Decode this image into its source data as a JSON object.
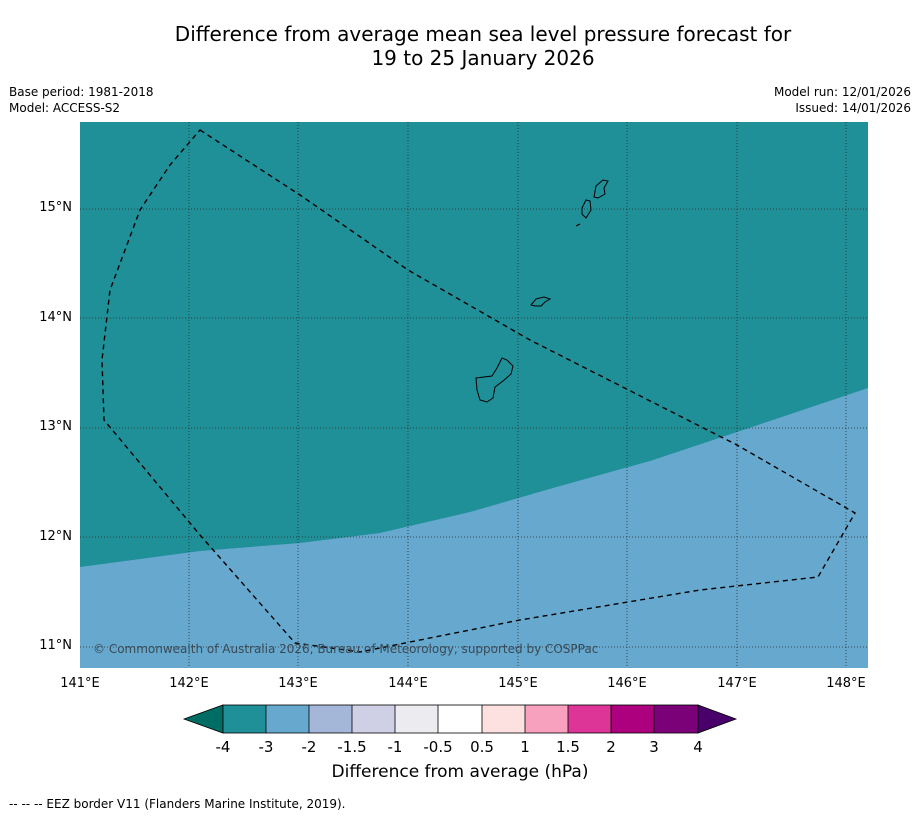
{
  "title": {
    "line1": "Difference from average mean sea level pressure forecast for",
    "line2": "19 to 25 January 2026"
  },
  "meta": {
    "base_period": "Base period: 1981-2018",
    "model": "Model: ACCESS-S2",
    "model_run": "Model run: 12/01/2026",
    "issued": "Issued: 14/01/2026"
  },
  "map": {
    "lat_labels": [
      "15°N",
      "14°N",
      "13°N",
      "12°N",
      "11°N"
    ],
    "lon_labels": [
      "141°E",
      "142°E",
      "143°E",
      "144°E",
      "145°E",
      "146°E",
      "147°E",
      "148°E"
    ],
    "copyright": "© Commonwealth of Australia 2026, Bureau of Meteorology, supported by COSPPac",
    "field_colors": {
      "below_minus3": "#1f8f98",
      "minus3_to_minus2": "#66a8ce"
    }
  },
  "colorbar": {
    "title": "Difference from average (hPa)",
    "ticks": [
      "-4",
      "-3",
      "-2",
      "-1.5",
      "-1",
      "-0.5",
      "0.5",
      "1",
      "1.5",
      "2",
      "3",
      "4"
    ],
    "colors": [
      "#006d65",
      "#1f8f98",
      "#66a8ce",
      "#a5b7d9",
      "#cfcfe6",
      "#ececf0",
      "#ffffff",
      "#fde0e0",
      "#f7a1be",
      "#dd3597",
      "#ad007f",
      "#7a0177",
      "#49006a"
    ]
  },
  "legend": {
    "eez_note": "--  --  -- EEZ border V11 (Flanders Marine Institute, 2019)."
  }
}
